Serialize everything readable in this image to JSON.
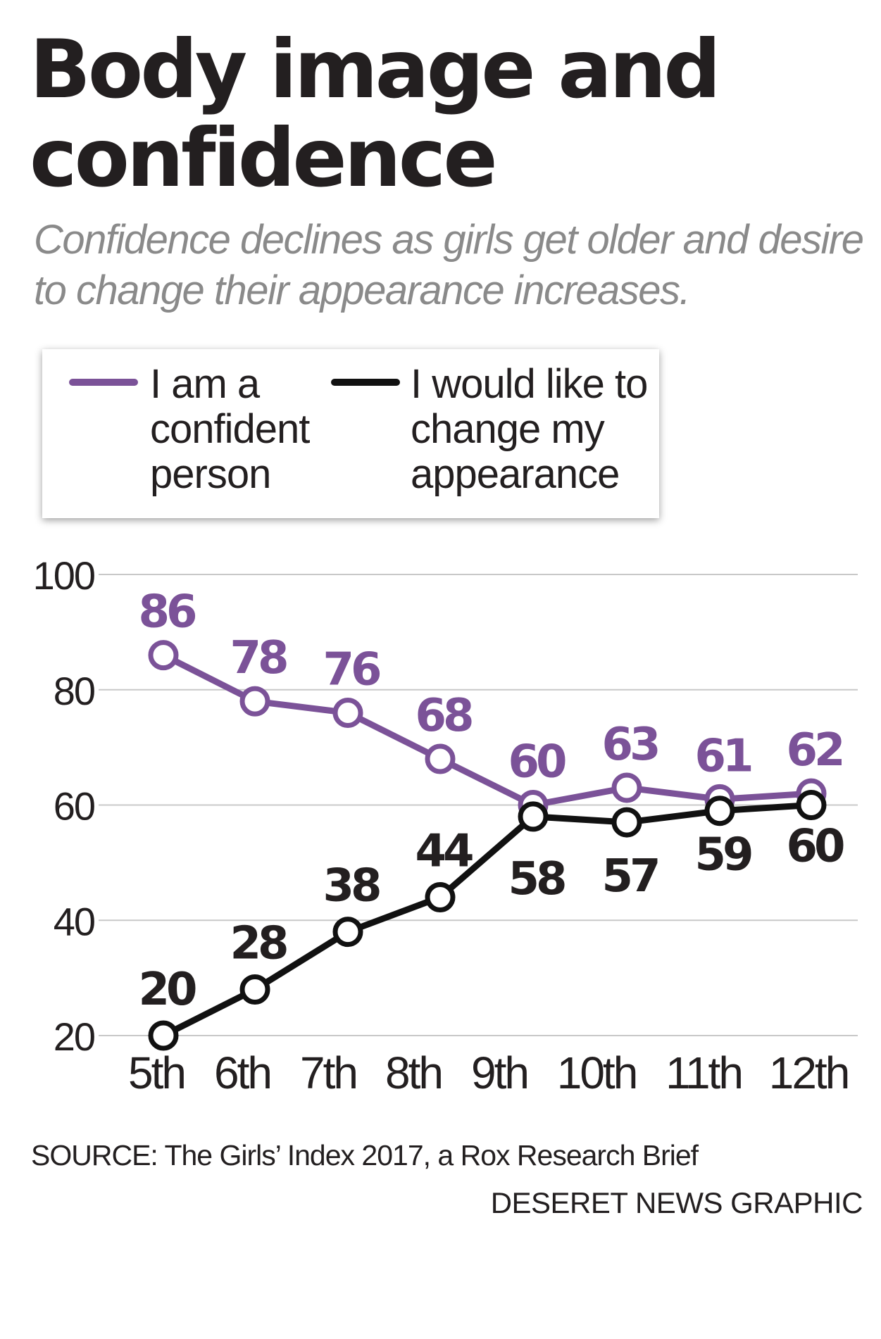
{
  "title": "Body image and confidence",
  "subtitle": "Confidence declines as girls get older and desire to change their appearance increases.",
  "legend": {
    "items": [
      {
        "label": "I am a confident person",
        "lines": [
          "I am a",
          "confident",
          "person"
        ],
        "color": "#7b5298"
      },
      {
        "label": "I would like to change my appearance",
        "lines": [
          "I would like to",
          "change my",
          "appearance"
        ],
        "color": "#111111"
      }
    ]
  },
  "source": "SOURCE: The Girls’ Index 2017, a Rox Research Brief",
  "credit": "DESERET NEWS GRAPHIC",
  "chart_data": {
    "type": "line",
    "categories": [
      "5th",
      "6th",
      "7th",
      "8th",
      "9th",
      "10th",
      "11th",
      "12th"
    ],
    "series": [
      {
        "name": "I am a confident person",
        "color": "#7b5298",
        "values": [
          86,
          78,
          76,
          68,
          60,
          63,
          61,
          62
        ]
      },
      {
        "name": "I would like to change my appearance",
        "color": "#111111",
        "values": [
          20,
          28,
          38,
          44,
          58,
          57,
          59,
          60
        ]
      }
    ],
    "ylim": [
      20,
      100
    ],
    "yticks": [
      20,
      40,
      60,
      80,
      100
    ],
    "grid": true,
    "legend_position": "top",
    "data_labels": true
  }
}
